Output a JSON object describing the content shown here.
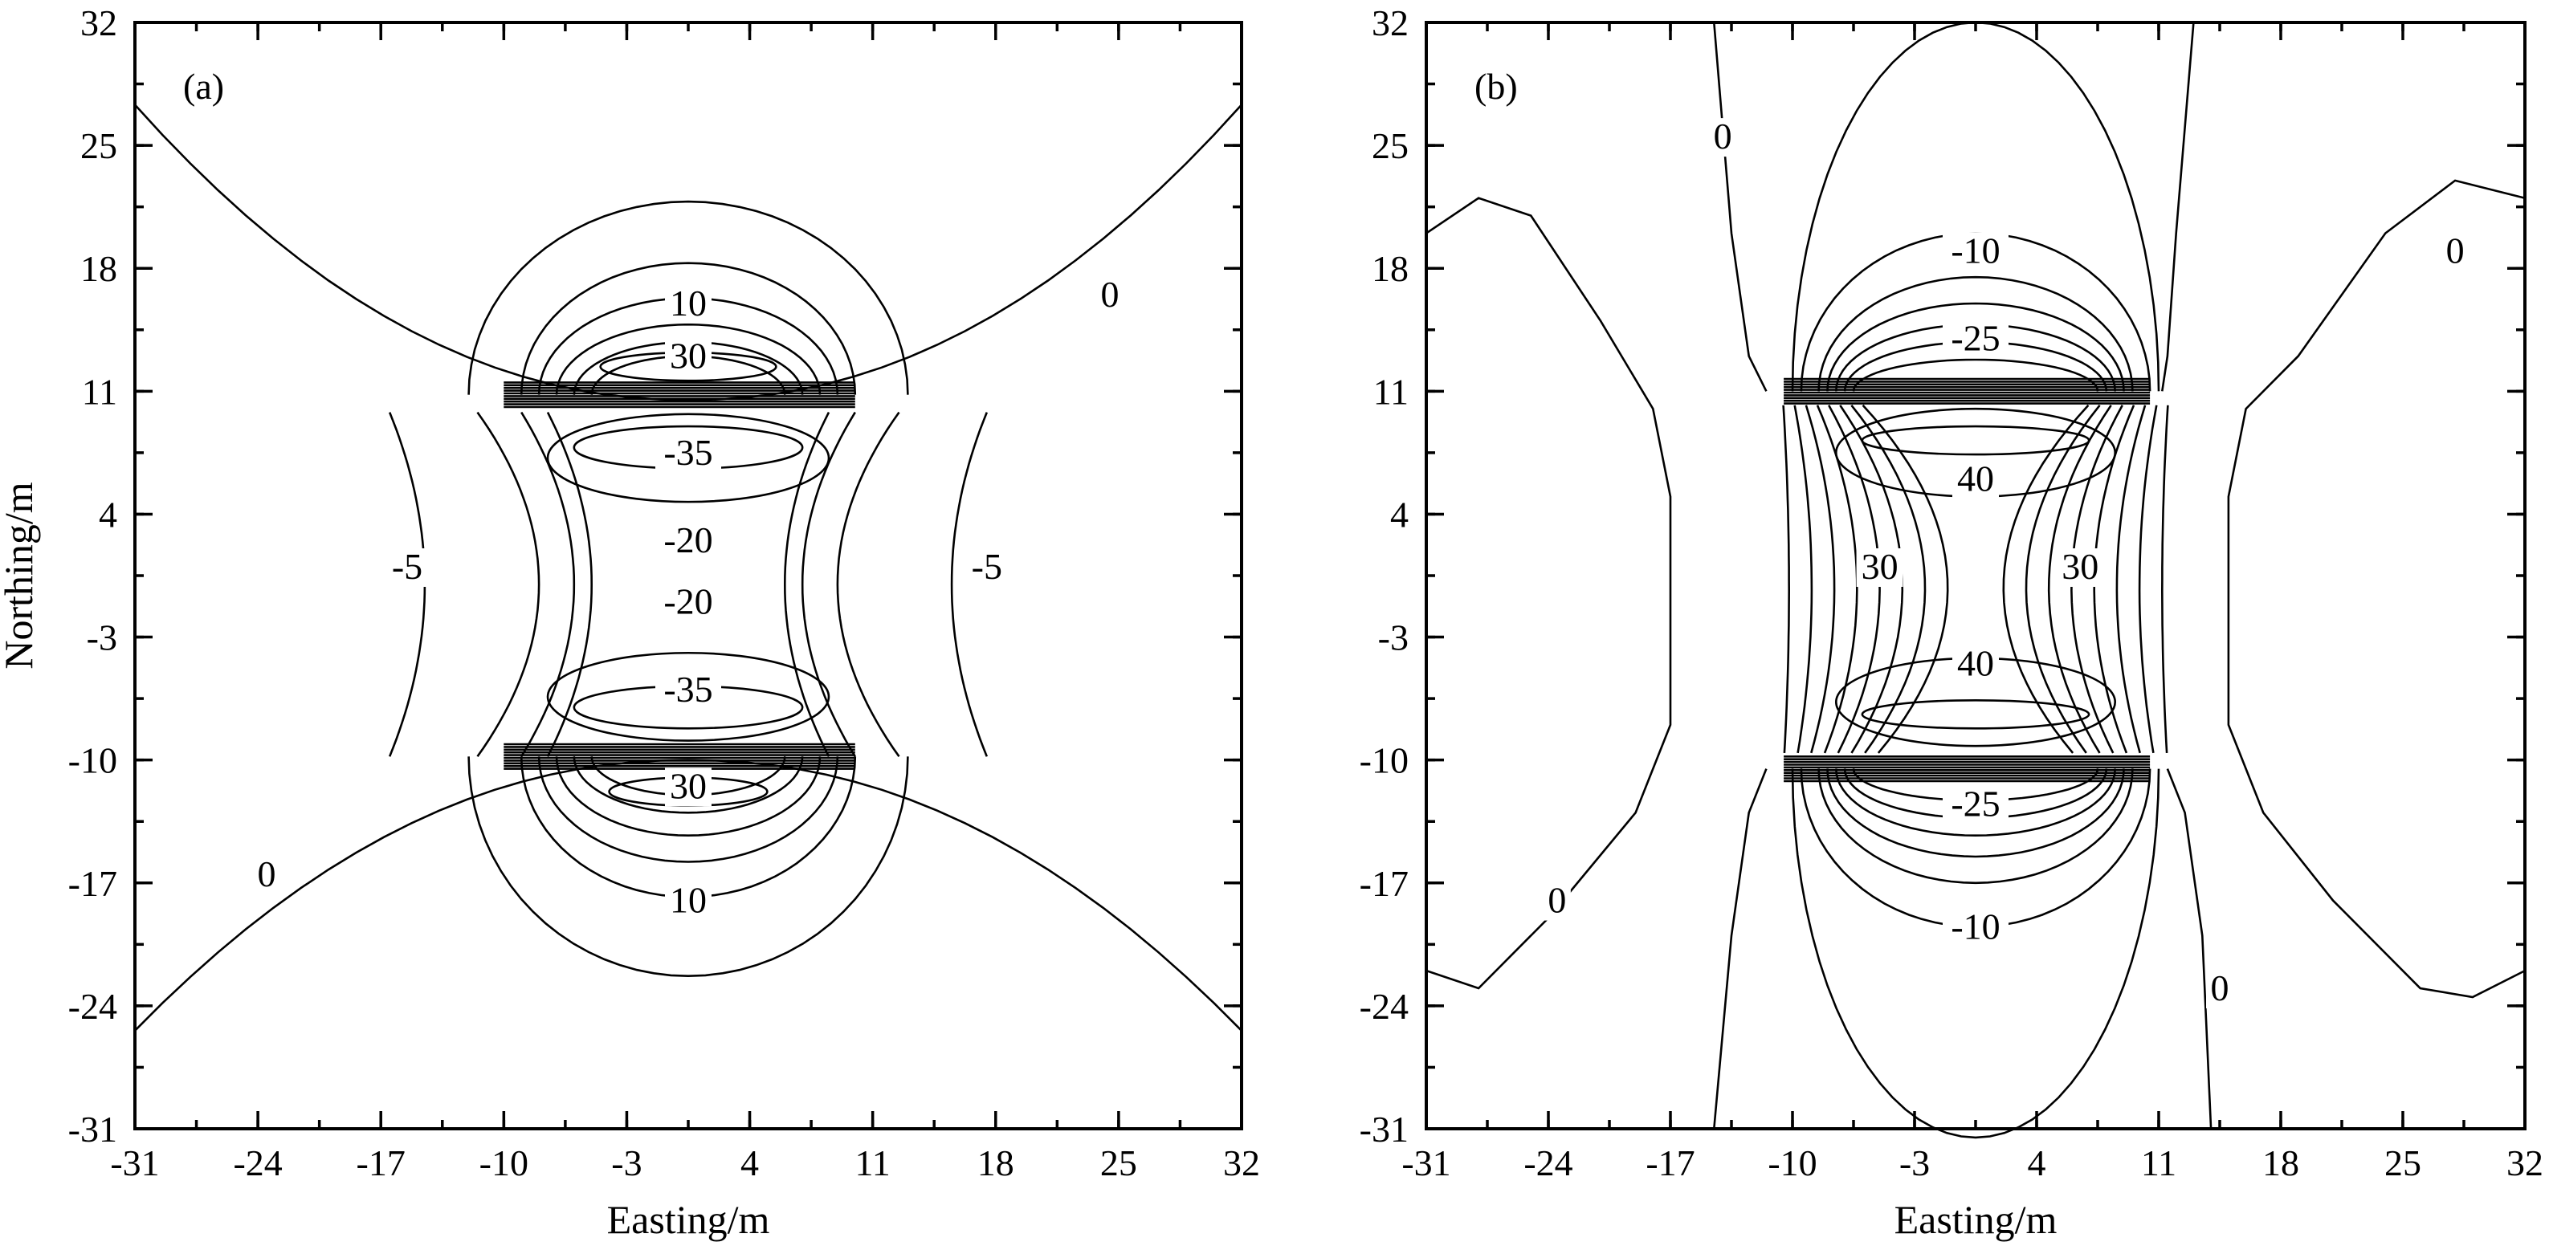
{
  "chart_data": [
    {
      "type": "contour",
      "panel_label": "(a)",
      "xlabel": "Easting/m",
      "ylabel": "Northing/m",
      "xlim": [
        -31,
        32
      ],
      "ylim": [
        -31,
        32
      ],
      "xticks": [
        -31,
        -24,
        -17,
        -10,
        -3,
        4,
        11,
        18,
        25,
        32
      ],
      "yticks": [
        32,
        25,
        18,
        11,
        4,
        -3,
        -10,
        -17,
        -24,
        -31
      ],
      "contour_labels": [
        {
          "text": "10",
          "x": 0.5,
          "y": 15.5
        },
        {
          "text": "30",
          "x": 0.5,
          "y": 12.5
        },
        {
          "text": "-35",
          "x": 0.5,
          "y": 7.0
        },
        {
          "text": "-20",
          "x": 0.5,
          "y": 2.0
        },
        {
          "text": "-20",
          "x": 0.5,
          "y": -1.5
        },
        {
          "text": "-35",
          "x": 0.5,
          "y": -6.5
        },
        {
          "text": "30",
          "x": 0.5,
          "y": -12.0
        },
        {
          "text": "10",
          "x": 0.5,
          "y": -18.5
        },
        {
          "text": "0",
          "x": 24.5,
          "y": 16.0
        },
        {
          "text": "0",
          "x": -23.5,
          "y": -17.0
        },
        {
          "text": "-5",
          "x": -15.5,
          "y": 0.5
        },
        {
          "text": "-5",
          "x": 17.5,
          "y": 0.5
        }
      ]
    },
    {
      "type": "contour",
      "panel_label": "(b)",
      "xlabel": "Easting/m",
      "ylabel": "",
      "xlim": [
        -31,
        32
      ],
      "ylim": [
        -31,
        32
      ],
      "xticks": [
        -31,
        -24,
        -17,
        -10,
        -3,
        4,
        11,
        18,
        25,
        32
      ],
      "yticks": [
        32,
        25,
        18,
        11,
        4,
        -3,
        -10,
        -17,
        -24,
        -31
      ],
      "contour_labels": [
        {
          "text": "-10",
          "x": 0.5,
          "y": 18.5
        },
        {
          "text": "-25",
          "x": 0.5,
          "y": 13.5
        },
        {
          "text": "40",
          "x": 0.5,
          "y": 5.5
        },
        {
          "text": "30",
          "x": -5.0,
          "y": 0.5
        },
        {
          "text": "30",
          "x": 6.5,
          "y": 0.5
        },
        {
          "text": "40",
          "x": 0.5,
          "y": -5.0
        },
        {
          "text": "-25",
          "x": 0.5,
          "y": -13.0
        },
        {
          "text": "-10",
          "x": 0.5,
          "y": -20.0
        },
        {
          "text": "0",
          "x": -14.0,
          "y": 25.0
        },
        {
          "text": "0",
          "x": 28.0,
          "y": 18.5
        },
        {
          "text": "0",
          "x": -23.5,
          "y": -18.5
        },
        {
          "text": "0",
          "x": 14.5,
          "y": -23.5
        }
      ]
    }
  ]
}
